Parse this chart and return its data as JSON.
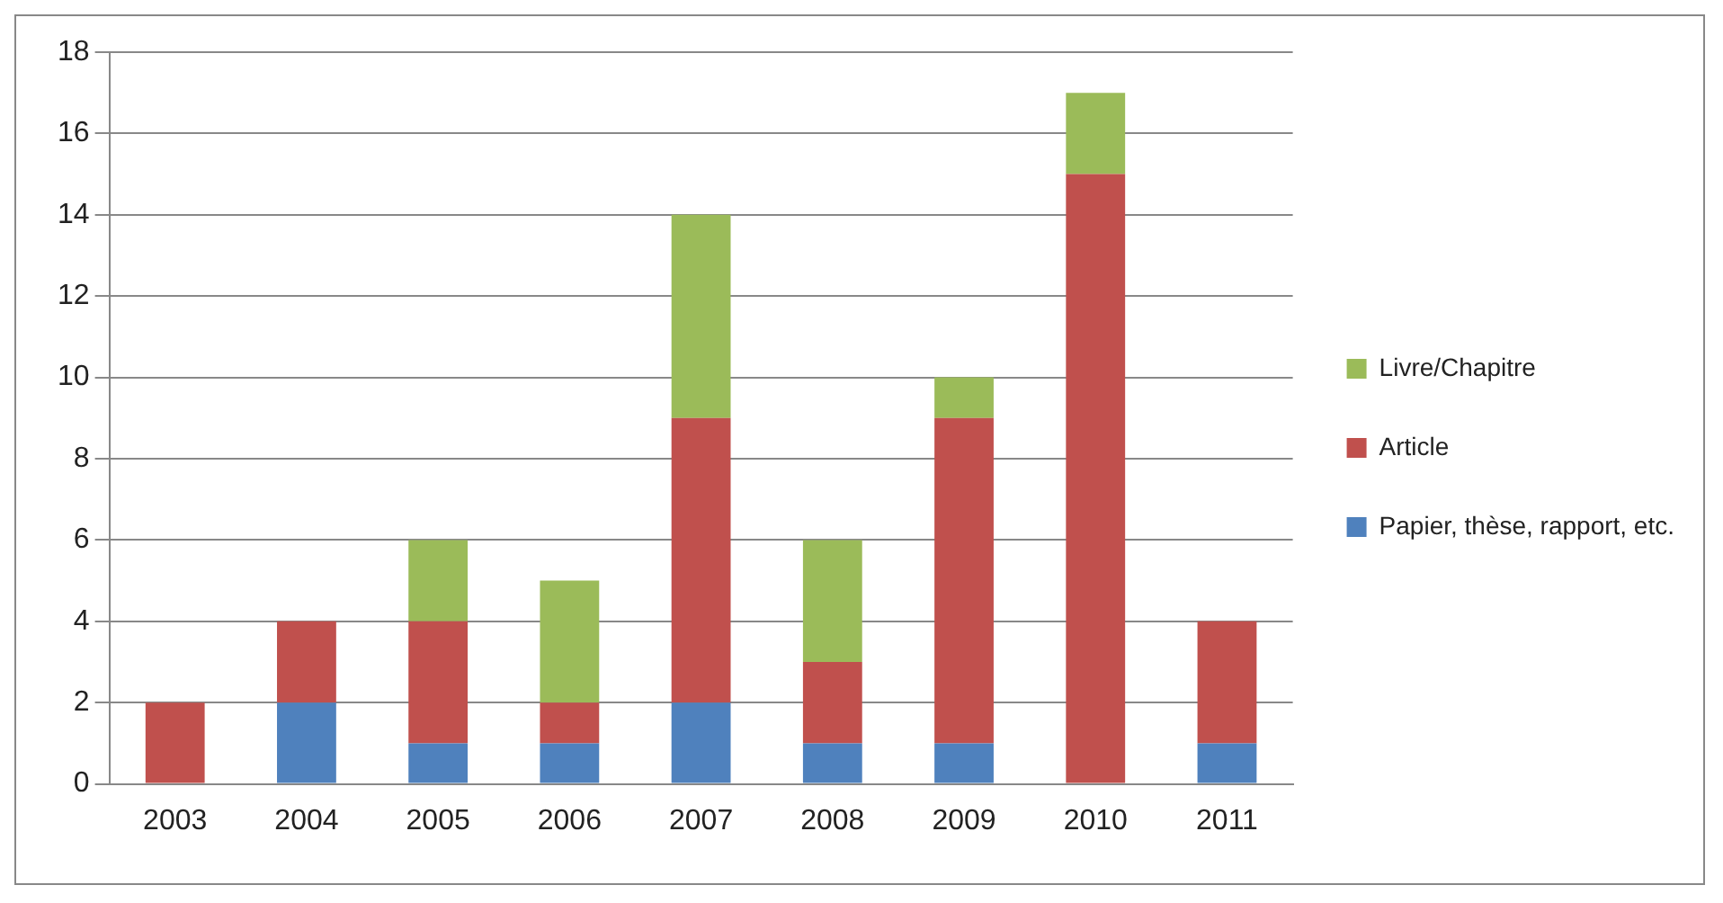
{
  "chart_data": {
    "type": "bar",
    "stacked": true,
    "categories": [
      "2003",
      "2004",
      "2005",
      "2006",
      "2007",
      "2008",
      "2009",
      "2010",
      "2011"
    ],
    "series": [
      {
        "name": "Papier, thèse, rapport, etc.",
        "color": "#4f81bd",
        "values": [
          0,
          2,
          1,
          1,
          2,
          1,
          1,
          0,
          1
        ]
      },
      {
        "name": "Article",
        "color": "#c0504d",
        "values": [
          2,
          2,
          3,
          1,
          7,
          2,
          8,
          15,
          3
        ]
      },
      {
        "name": "Livre/Chapitre",
        "color": "#9bbb59",
        "values": [
          0,
          0,
          2,
          3,
          5,
          3,
          1,
          2,
          0
        ]
      }
    ],
    "ylim": [
      0,
      18
    ],
    "yticks": [
      0,
      2,
      4,
      6,
      8,
      10,
      12,
      14,
      16,
      18
    ],
    "grid": "y",
    "legend": "right"
  }
}
